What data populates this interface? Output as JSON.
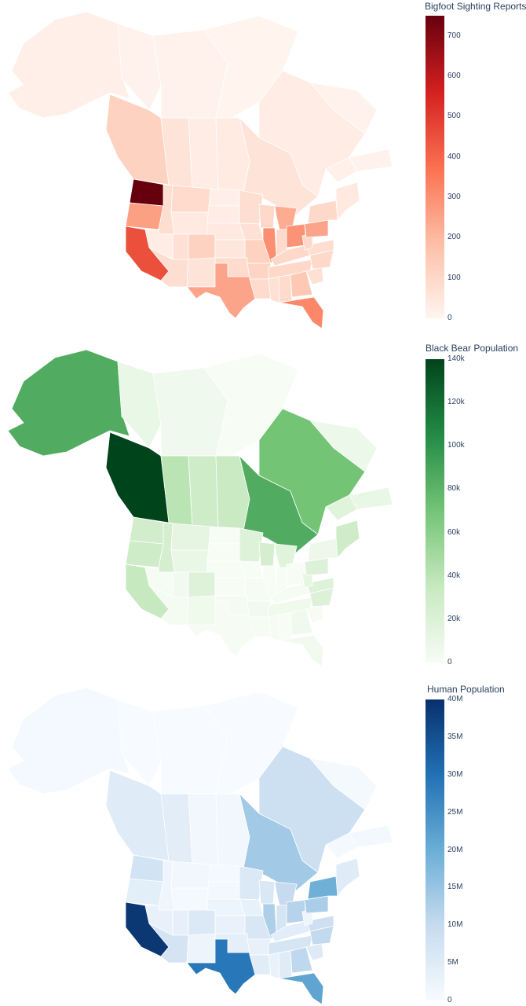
{
  "maps": [
    {
      "id": "bigfoot",
      "legend_title": "Bigfoot Sighting Reports",
      "colorscale": [
        "#fff5f0",
        "#fdbea5",
        "#fb7050",
        "#d32020",
        "#67000d"
      ],
      "cmin": 0,
      "cmax": 750,
      "ticks": [
        {
          "value": 700,
          "label": "700"
        },
        {
          "value": 600,
          "label": "600"
        },
        {
          "value": 500,
          "label": "500"
        },
        {
          "value": 400,
          "label": "400"
        },
        {
          "value": 300,
          "label": "300"
        },
        {
          "value": 200,
          "label": "200"
        },
        {
          "value": 100,
          "label": "100"
        },
        {
          "value": 0,
          "label": "0"
        }
      ],
      "regions": {
        "AK": 20,
        "YT": 10,
        "NT": 10,
        "NU": 5,
        "BC": 120,
        "AB": 60,
        "SK": 30,
        "MB": 35,
        "ON": 60,
        "QC": 30,
        "NL": 10,
        "NB": 15,
        "NS": 10,
        "WA": 750,
        "OR": 260,
        "CA": 450,
        "ID": 80,
        "NV": 30,
        "MT": 90,
        "WY": 40,
        "UT": 70,
        "AZ": 80,
        "CO": 120,
        "NM": 60,
        "ND": 20,
        "SD": 30,
        "NE": 40,
        "KS": 50,
        "OK": 90,
        "TX": 250,
        "MN": 80,
        "IA": 70,
        "MO": 120,
        "AR": 110,
        "LA": 90,
        "WI": 100,
        "IL": 300,
        "MI": 230,
        "IN": 90,
        "OH": 290,
        "KY": 100,
        "TN": 100,
        "MS": 70,
        "AL": 90,
        "GA": 150,
        "FL": 320,
        "SC": 70,
        "NC": 100,
        "VA": 80,
        "WV": 100,
        "PA": 250,
        "NY": 100,
        "NE_US": 40
      }
    },
    {
      "id": "bears",
      "legend_title": "Black Bear Population",
      "colorscale": [
        "#f7fcf5",
        "#c7e9c0",
        "#74c476",
        "#238b45",
        "#00441b"
      ],
      "cmin": 0,
      "cmax": 140000,
      "ticks": [
        {
          "value": 140000,
          "label": "140k"
        },
        {
          "value": 120000,
          "label": "120k"
        },
        {
          "value": 100000,
          "label": "100k"
        },
        {
          "value": 80000,
          "label": "80k"
        },
        {
          "value": 60000,
          "label": "60k"
        },
        {
          "value": 40000,
          "label": "40k"
        },
        {
          "value": 20000,
          "label": "20k"
        },
        {
          "value": 0,
          "label": "0"
        }
      ],
      "regions": {
        "AK": 85000,
        "YT": 10000,
        "NT": 5000,
        "NU": 0,
        "BC": 140000,
        "AB": 40000,
        "SK": 30000,
        "MB": 33000,
        "ON": 85000,
        "QC": 70000,
        "NL": 8000,
        "NB": 17000,
        "NS": 10000,
        "WA": 27000,
        "OR": 30000,
        "CA": 35000,
        "ID": 25000,
        "NV": 500,
        "MT": 13000,
        "WY": 10000,
        "UT": 4000,
        "AZ": 2500,
        "CO": 18000,
        "NM": 6000,
        "ND": 100,
        "SD": 100,
        "NE": 100,
        "KS": 100,
        "OK": 1500,
        "TX": 1000,
        "MN": 18000,
        "IA": 100,
        "MO": 500,
        "AR": 4000,
        "LA": 1000,
        "WI": 25000,
        "IL": 100,
        "MI": 17000,
        "IN": 100,
        "OH": 100,
        "KY": 1000,
        "TN": 6000,
        "MS": 500,
        "AL": 200,
        "GA": 5000,
        "FL": 4000,
        "SC": 1000,
        "NC": 20000,
        "VA": 18000,
        "WV": 12000,
        "PA": 20000,
        "NY": 7000,
        "NE_US": 30000
      }
    },
    {
      "id": "humans",
      "legend_title": "Human Population",
      "colorscale": [
        "#f7fbff",
        "#c6dbef",
        "#6baed6",
        "#2171b5",
        "#08306b"
      ],
      "cmin": 0,
      "cmax": 40000000,
      "ticks": [
        {
          "value": 40000000,
          "label": "40M"
        },
        {
          "value": 35000000,
          "label": "35M"
        },
        {
          "value": 30000000,
          "label": "30M"
        },
        {
          "value": 25000000,
          "label": "25M"
        },
        {
          "value": 20000000,
          "label": "20M"
        },
        {
          "value": 15000000,
          "label": "15M"
        },
        {
          "value": 10000000,
          "label": "10M"
        },
        {
          "value": 5000000,
          "label": "5M"
        },
        {
          "value": 0,
          "label": "0"
        }
      ],
      "regions": {
        "AK": 730000,
        "YT": 40000,
        "NT": 45000,
        "NU": 38000,
        "BC": 5000000,
        "AB": 4300000,
        "SK": 1100000,
        "MB": 1300000,
        "ON": 14000000,
        "QC": 8500000,
        "NL": 520000,
        "NB": 780000,
        "NS": 970000,
        "WA": 7600000,
        "OR": 4200000,
        "CA": 39000000,
        "ID": 1800000,
        "NV": 3100000,
        "MT": 1100000,
        "WY": 580000,
        "UT": 3300000,
        "AZ": 7200000,
        "CO": 5800000,
        "NM": 2100000,
        "ND": 780000,
        "SD": 890000,
        "NE": 1960000,
        "KS": 2900000,
        "OK": 3900000,
        "TX": 29000000,
        "MN": 5700000,
        "IA": 3200000,
        "MO": 6100000,
        "AR": 3000000,
        "LA": 4600000,
        "WI": 5900000,
        "IL": 12700000,
        "MI": 10000000,
        "IN": 6800000,
        "OH": 11700000,
        "KY": 4500000,
        "TN": 6900000,
        "MS": 2900000,
        "AL": 5000000,
        "GA": 10700000,
        "FL": 21500000,
        "SC": 5100000,
        "NC": 10400000,
        "VA": 8600000,
        "WV": 1800000,
        "PA": 13000000,
        "NY": 19500000,
        "NE_US": 5000000
      }
    }
  ]
}
